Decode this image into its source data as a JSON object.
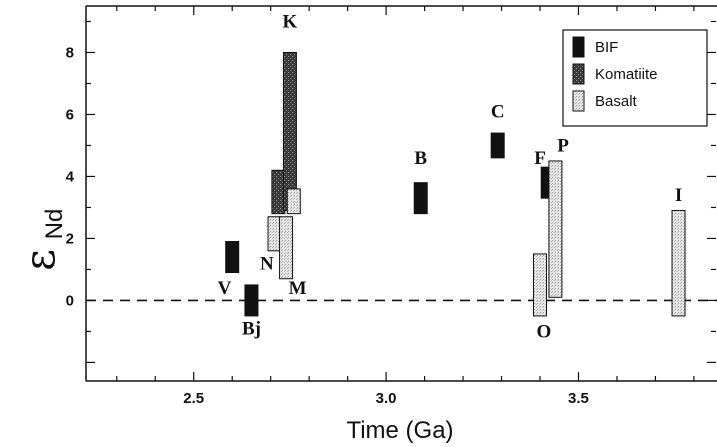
{
  "chart_data": {
    "type": "bar",
    "xlabel": "Time (Ga)",
    "ylabel": "ε",
    "ylabel_subscript": "Nd",
    "xlim": [
      2.22,
      3.86
    ],
    "ylim": [
      -2.6,
      9.5
    ],
    "xticks": [
      2.5,
      3.0,
      3.5
    ],
    "xtick_labels": [
      "2.5",
      "3.0",
      "3.5"
    ],
    "yticks": [
      0,
      2,
      4,
      6,
      8
    ],
    "ytick_labels": [
      "0",
      "2",
      "4",
      "6",
      "8"
    ],
    "reference_line": {
      "y": 0,
      "style": "dashed"
    },
    "legend": {
      "placement": "top-right",
      "items": [
        {
          "label": "BIF",
          "color": "#111111"
        },
        {
          "label": "Komatiite",
          "color": "#4a4a4a"
        },
        {
          "label": "Basalt",
          "color": "#d8d8d8"
        }
      ]
    },
    "ranges": [
      {
        "type": "BIF",
        "x": 2.6,
        "low": 0.9,
        "high": 1.9
      },
      {
        "type": "BIF",
        "x": 2.65,
        "low": -0.5,
        "high": 0.5
      },
      {
        "type": "Komatiite",
        "x": 2.72,
        "low": 2.8,
        "high": 4.2
      },
      {
        "type": "Komatiite",
        "x": 2.75,
        "low": 2.9,
        "high": 8.0
      },
      {
        "type": "Basalt",
        "x": 2.71,
        "low": 1.6,
        "high": 2.7
      },
      {
        "type": "Basalt",
        "x": 2.74,
        "low": 0.7,
        "high": 2.7
      },
      {
        "type": "Basalt",
        "x": 2.76,
        "low": 2.8,
        "high": 3.6
      },
      {
        "type": "BIF",
        "x": 3.09,
        "low": 2.8,
        "high": 3.8
      },
      {
        "type": "BIF",
        "x": 3.29,
        "low": 4.6,
        "high": 5.4
      },
      {
        "type": "BIF",
        "x": 3.42,
        "low": 3.3,
        "high": 4.3
      },
      {
        "type": "Basalt",
        "x": 3.4,
        "low": -0.5,
        "high": 1.5
      },
      {
        "type": "Basalt",
        "x": 3.44,
        "low": 0.1,
        "high": 4.5
      },
      {
        "type": "Basalt",
        "x": 3.76,
        "low": -0.5,
        "high": 2.9
      }
    ],
    "labels": [
      {
        "text": "V",
        "x": 2.58,
        "y": 0.2
      },
      {
        "text": "Bj",
        "x": 2.65,
        "y": -1.1
      },
      {
        "text": "N",
        "x": 2.69,
        "y": 1.0
      },
      {
        "text": "M",
        "x": 2.77,
        "y": 0.2
      },
      {
        "text": "K",
        "x": 2.75,
        "y": 8.8
      },
      {
        "text": "B",
        "x": 3.09,
        "y": 4.4
      },
      {
        "text": "C",
        "x": 3.29,
        "y": 5.9
      },
      {
        "text": "F",
        "x": 3.4,
        "y": 4.4
      },
      {
        "text": "P",
        "x": 3.46,
        "y": 4.8
      },
      {
        "text": "O",
        "x": 3.41,
        "y": -1.2
      },
      {
        "text": "I",
        "x": 3.76,
        "y": 3.2
      }
    ]
  }
}
